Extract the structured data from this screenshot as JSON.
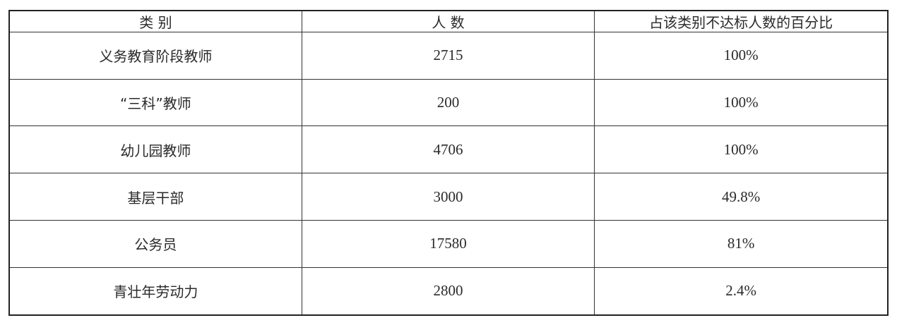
{
  "table": {
    "headers": [
      "类 别",
      "人 数",
      "占该类别不达标人数的百分比"
    ],
    "rows": [
      [
        "义务教育阶段教师",
        "2715",
        "100%"
      ],
      [
        "“三科”教师",
        "200",
        "100%"
      ],
      [
        "幼儿园教师",
        "4706",
        "100%"
      ],
      [
        "基层干部",
        "3000",
        "49.8%"
      ],
      [
        "公务员",
        "17580",
        "81%"
      ],
      [
        "青壮年劳动力",
        "2800",
        "2.4%"
      ]
    ]
  }
}
